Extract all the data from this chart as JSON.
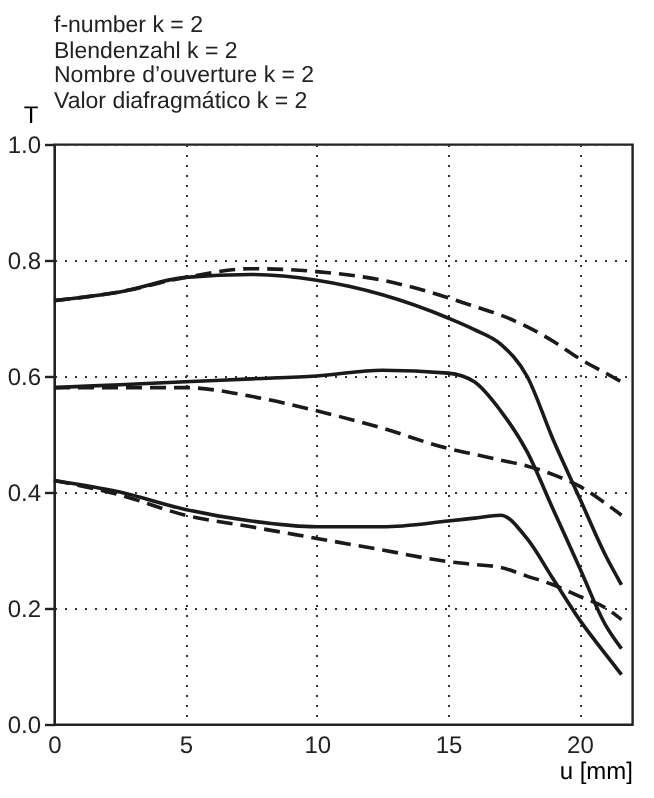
{
  "chart_data": {
    "type": "line",
    "annotations": [
      "f-number k = 2",
      "Blendenzahl k = 2",
      "Nombre d’ouverture k = 2",
      "Valor diafragmático k = 2"
    ],
    "xlabel": "u [mm]",
    "ylabel": "T",
    "x": [
      0,
      2.5,
      5,
      7.5,
      10,
      12.5,
      15,
      16,
      17,
      18,
      19,
      20,
      21,
      21.6
    ],
    "xlim": [
      0,
      22
    ],
    "xticks": [
      0,
      5,
      10,
      15,
      20
    ],
    "ylim": [
      0,
      1
    ],
    "yticks": [
      {
        "value": 0,
        "label": "0.0"
      },
      0.2,
      0.4,
      0.6,
      0.8,
      {
        "value": 1,
        "label": "1.0"
      }
    ],
    "grid": true,
    "series": [
      {
        "color": "#1a1a1a",
        "line_style": "solid",
        "values": [
          0.73,
          0.745,
          0.77,
          0.775,
          0.765,
          0.74,
          0.7,
          0.68,
          0.655,
          0.6,
          0.49,
          0.39,
          0.29,
          0.24
        ]
      },
      {
        "color": "#1a1a1a",
        "line_style": "dashed",
        "values": [
          0.73,
          0.745,
          0.77,
          0.785,
          0.78,
          0.765,
          0.735,
          0.72,
          0.705,
          0.685,
          0.66,
          0.63,
          0.605,
          0.59
        ]
      },
      {
        "color": "#1a1a1a",
        "line_style": "solid",
        "values": [
          0.58,
          0.585,
          0.59,
          0.595,
          0.6,
          0.61,
          0.605,
          0.59,
          0.54,
          0.47,
          0.37,
          0.27,
          0.17,
          0.13
        ]
      },
      {
        "color": "#1a1a1a",
        "line_style": "dashed",
        "values": [
          0.58,
          0.58,
          0.58,
          0.565,
          0.54,
          0.51,
          0.475,
          0.465,
          0.455,
          0.445,
          0.43,
          0.41,
          0.38,
          0.36
        ]
      },
      {
        "color": "#1a1a1a",
        "line_style": "solid",
        "values": [
          0.42,
          0.4,
          0.37,
          0.35,
          0.34,
          0.34,
          0.35,
          0.355,
          0.36,
          0.32,
          0.25,
          0.18,
          0.12,
          0.085
        ]
      },
      {
        "color": "#1a1a1a",
        "line_style": "dashed",
        "values": [
          0.42,
          0.395,
          0.36,
          0.34,
          0.32,
          0.3,
          0.28,
          0.275,
          0.27,
          0.255,
          0.24,
          0.22,
          0.2,
          0.18
        ]
      }
    ]
  }
}
